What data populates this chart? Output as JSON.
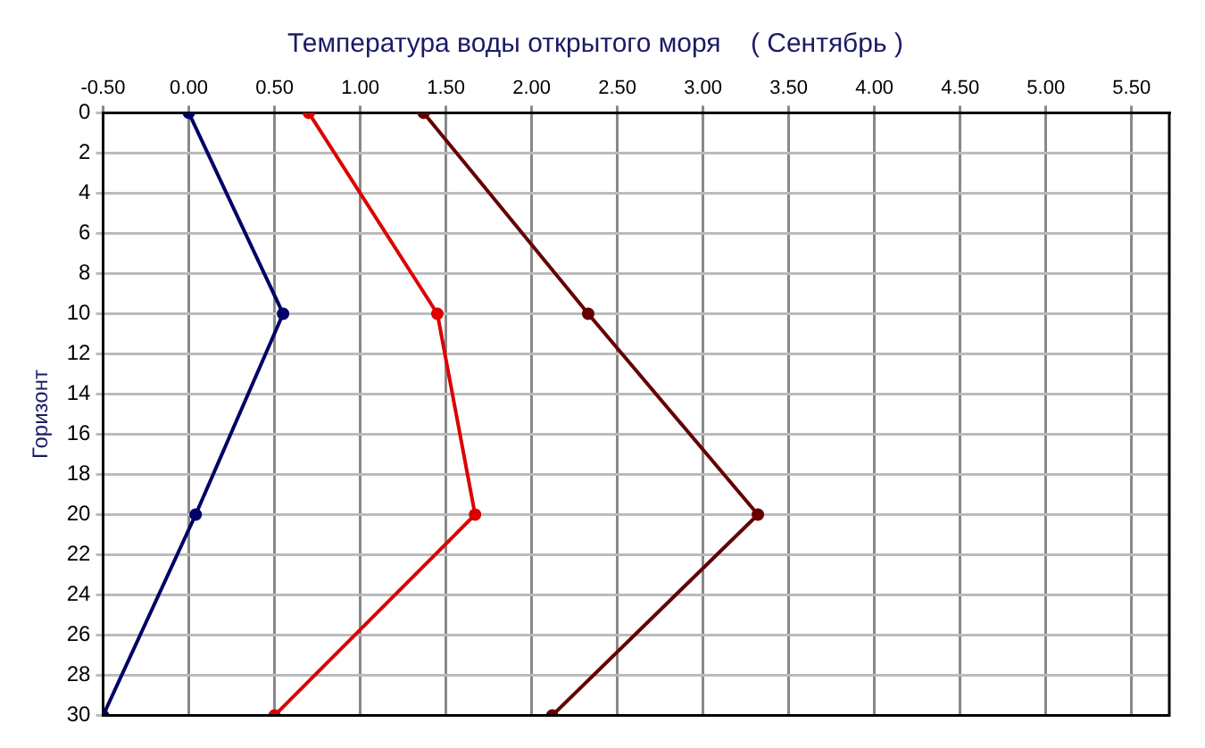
{
  "chart_data": {
    "type": "line",
    "title": "Температура воды открытого моря    ( Сентябрь )",
    "ylabel": "Горизонт",
    "series": [
      {
        "color": "#000066",
        "x": [
          0,
          0.55,
          0.04,
          -0.5
        ],
        "values": [
          0,
          10,
          20,
          30
        ]
      },
      {
        "color": "#dd0000",
        "x": [
          0.7,
          1.45,
          1.67,
          0.5
        ],
        "values": [
          0,
          10,
          20,
          30
        ]
      },
      {
        "color": "#660000",
        "x": [
          1.37,
          2.33,
          3.32,
          2.12
        ],
        "values": [
          0,
          10,
          20,
          30
        ]
      }
    ],
    "xlim": [
      -0.5,
      5.72
    ],
    "xticks": [
      {
        "value": -0.5,
        "label": "-0.50"
      },
      {
        "value": 0,
        "label": "0.00"
      },
      {
        "value": 0.5,
        "label": "0.50"
      },
      {
        "value": 1,
        "label": "1.00"
      },
      {
        "value": 1.5,
        "label": "1.50"
      },
      {
        "value": 2,
        "label": "2.00"
      },
      {
        "value": 2.5,
        "label": "2.50"
      },
      {
        "value": 3,
        "label": "3.00"
      },
      {
        "value": 3.5,
        "label": "3.50"
      },
      {
        "value": 4,
        "label": "4.00"
      },
      {
        "value": 4.5,
        "label": "4.50"
      },
      {
        "value": 5,
        "label": "5.00"
      },
      {
        "value": 5.5,
        "label": "5.50"
      }
    ],
    "ylim": [
      30,
      0
    ],
    "yticks": [
      0,
      2,
      4,
      6,
      8,
      10,
      12,
      14,
      16,
      18,
      20,
      22,
      24,
      26,
      28,
      30
    ],
    "grid": true,
    "marker": "circle",
    "line_style": "solid",
    "legend": false
  }
}
